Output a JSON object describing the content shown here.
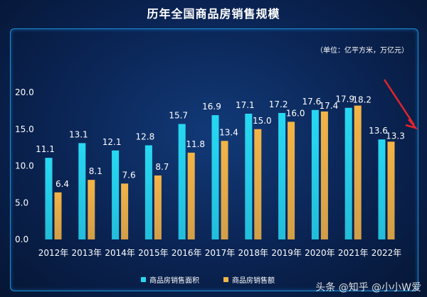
{
  "chart_data": {
    "type": "bar",
    "title": "历年全国商品房销售规模",
    "unit": "（单位：亿平方米，万亿元）",
    "categories": [
      "2012年",
      "2013年",
      "2014年",
      "2015年",
      "2016年",
      "2017年",
      "2018年",
      "2019年",
      "2020年",
      "2021年",
      "2022年"
    ],
    "series": [
      {
        "name": "商品房销售面积",
        "values": [
          11.1,
          13.1,
          12.1,
          12.8,
          15.7,
          16.9,
          17.1,
          17.2,
          17.6,
          17.9,
          13.6
        ],
        "color": "#27d8f2"
      },
      {
        "name": "商品房销售额",
        "values": [
          6.4,
          8.1,
          7.6,
          8.7,
          11.8,
          13.4,
          15.0,
          16.0,
          17.4,
          18.2,
          13.3
        ],
        "color": "#f4b446"
      }
    ],
    "y_ticks": [
      "0.0",
      "5.0",
      "10.0",
      "15.0",
      "20.0"
    ],
    "ylim": [
      0,
      20
    ],
    "legend_position": "bottom"
  },
  "watermark": "头条 @知乎 @小小W爱"
}
